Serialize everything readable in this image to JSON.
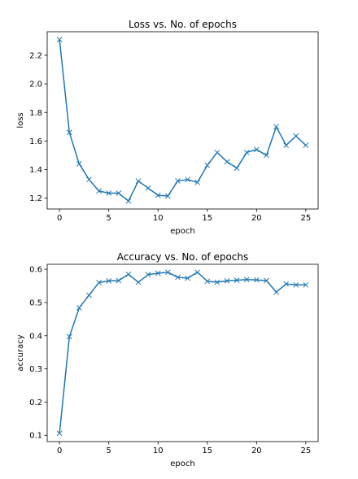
{
  "colors": {
    "series": "#1f77b4",
    "axis": "#000000",
    "background": "#ffffff"
  },
  "chart_data": [
    {
      "type": "line",
      "title": "Loss vs. No. of epochs",
      "xlabel": "epoch",
      "ylabel": "loss",
      "marker": "x",
      "grid": false,
      "xlim": [
        -1.25,
        26.25
      ],
      "ylim": [
        1.124,
        2.365
      ],
      "xticks": [
        0,
        5,
        10,
        15,
        20,
        25
      ],
      "xtick_labels": [
        "0",
        "5",
        "10",
        "15",
        "20",
        "25"
      ],
      "yticks": [
        1.2,
        1.4,
        1.6,
        1.8,
        2.0,
        2.2
      ],
      "ytick_labels": [
        "1.2",
        "1.4",
        "1.6",
        "1.8",
        "2.0",
        "2.2"
      ],
      "x": [
        0,
        1,
        2,
        3,
        4,
        5,
        6,
        7,
        8,
        9,
        10,
        11,
        12,
        13,
        14,
        15,
        16,
        17,
        18,
        19,
        20,
        21,
        22,
        23,
        24,
        25
      ],
      "y": [
        2.31,
        1.66,
        1.44,
        1.33,
        1.25,
        1.235,
        1.235,
        1.18,
        1.32,
        1.27,
        1.22,
        1.215,
        1.32,
        1.33,
        1.31,
        1.43,
        1.52,
        1.455,
        1.41,
        1.52,
        1.54,
        1.5,
        1.7,
        1.57,
        1.635,
        1.57
      ]
    },
    {
      "type": "line",
      "title": "Accuracy vs. No. of epochs",
      "xlabel": "epoch",
      "ylabel": "accuracy",
      "marker": "x",
      "grid": false,
      "xlim": [
        -1.25,
        26.25
      ],
      "ylim": [
        0.081,
        0.615
      ],
      "xticks": [
        0,
        5,
        10,
        15,
        20,
        25
      ],
      "xtick_labels": [
        "0",
        "5",
        "10",
        "15",
        "20",
        "25"
      ],
      "yticks": [
        0.1,
        0.2,
        0.3,
        0.4,
        0.5,
        0.6
      ],
      "ytick_labels": [
        "0.1",
        "0.2",
        "0.3",
        "0.4",
        "0.5",
        "0.6"
      ],
      "x": [
        0,
        1,
        2,
        3,
        4,
        5,
        6,
        7,
        8,
        9,
        10,
        11,
        12,
        13,
        14,
        15,
        16,
        17,
        18,
        19,
        20,
        21,
        22,
        23,
        24,
        25
      ],
      "y": [
        0.106,
        0.397,
        0.484,
        0.522,
        0.56,
        0.565,
        0.566,
        0.585,
        0.561,
        0.584,
        0.588,
        0.591,
        0.576,
        0.573,
        0.591,
        0.564,
        0.561,
        0.565,
        0.567,
        0.569,
        0.568,
        0.566,
        0.531,
        0.556,
        0.553,
        0.553
      ]
    }
  ]
}
